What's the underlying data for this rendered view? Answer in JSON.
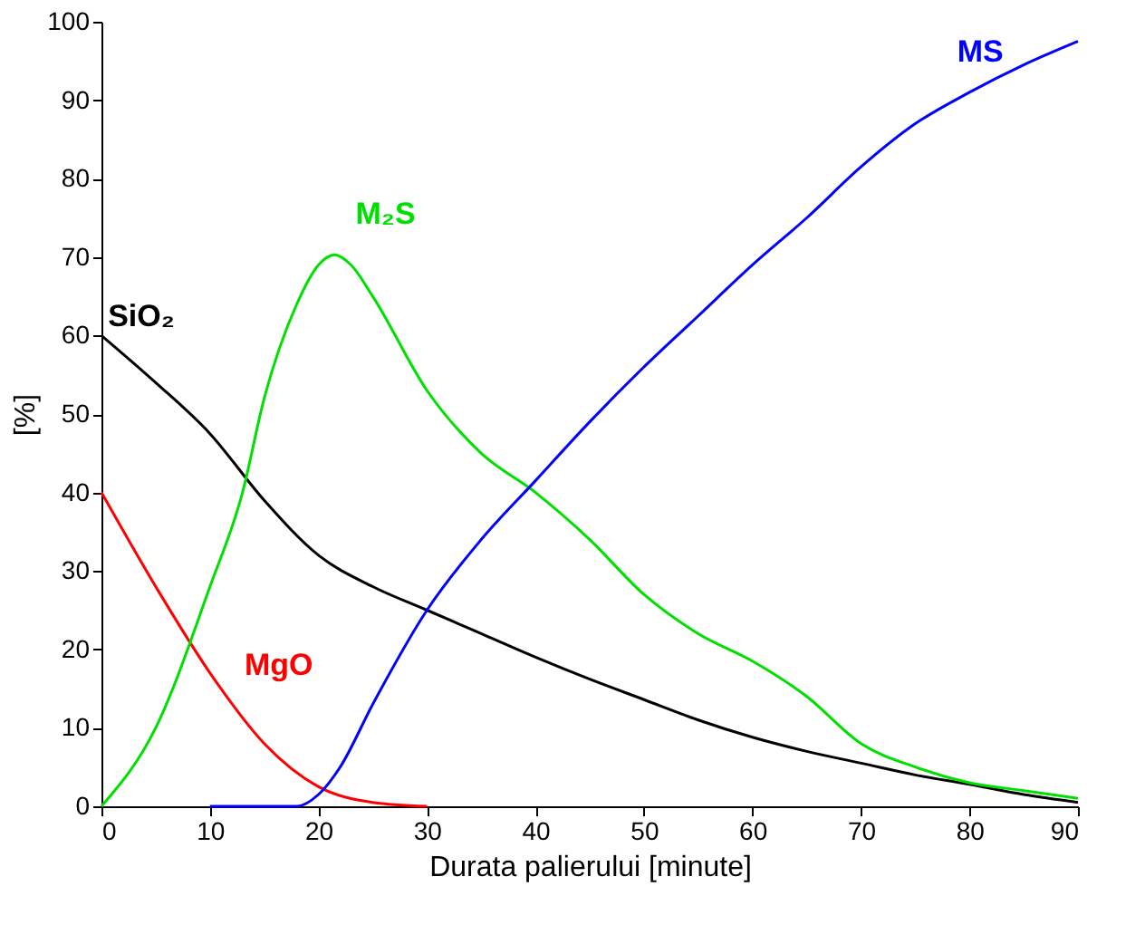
{
  "chart_data": {
    "type": "line",
    "xlabel": "Durata palierului [minute]",
    "ylabel": "[%]",
    "xlim": [
      0,
      90
    ],
    "ylim": [
      0,
      100
    ],
    "xticks": [
      0,
      10,
      20,
      30,
      40,
      50,
      60,
      70,
      80,
      90
    ],
    "yticks": [
      0,
      10,
      20,
      30,
      40,
      50,
      60,
      70,
      80,
      90,
      100
    ],
    "grid": false,
    "legend": false,
    "series": [
      {
        "name": "SiO₂",
        "color": "#000000",
        "x": [
          0,
          5,
          10,
          15,
          20,
          25,
          30,
          35,
          40,
          45,
          50,
          55,
          60,
          65,
          70,
          75,
          80,
          85,
          90
        ],
        "values": [
          60,
          54,
          47.5,
          39,
          32,
          28,
          25,
          22,
          19,
          16.2,
          13.6,
          11,
          8.8,
          7,
          5.5,
          4,
          2.8,
          1.5,
          0.5
        ]
      },
      {
        "name": "MgO",
        "color": "#ff0000",
        "x": [
          0,
          5,
          10,
          15,
          20,
          25,
          30
        ],
        "values": [
          40,
          28,
          17,
          8,
          2.5,
          0.5,
          0
        ]
      },
      {
        "name": "M₂S",
        "color": "#00e000",
        "x": [
          0,
          5,
          10,
          13,
          15,
          18,
          20,
          21.5,
          23,
          25,
          30,
          35,
          40,
          45,
          50,
          55,
          60,
          65,
          70,
          75,
          80,
          85,
          90
        ],
        "values": [
          0,
          10,
          28,
          40,
          52,
          64,
          69,
          70.3,
          69,
          65,
          53,
          45,
          40,
          34,
          27,
          22,
          18.5,
          14,
          8,
          5,
          3,
          2,
          1
        ]
      },
      {
        "name": "MS",
        "color": "#0000ff",
        "x": [
          10,
          18,
          20,
          22,
          25,
          30,
          35,
          40,
          45,
          50,
          55,
          60,
          65,
          70,
          75,
          80,
          85,
          90
        ],
        "values": [
          0,
          0,
          1.5,
          5,
          13,
          25,
          34,
          41.5,
          49,
          56,
          62.5,
          69,
          75,
          81.5,
          87,
          91,
          94.5,
          97.5
        ]
      }
    ]
  }
}
